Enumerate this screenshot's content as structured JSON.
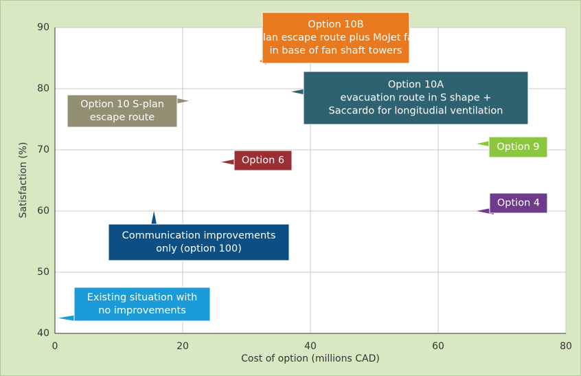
{
  "chart_data": {
    "type": "scatter",
    "xlabel": "Cost of option (millions CAD)",
    "ylabel": "Satisfaction (%)",
    "xlim": [
      0,
      80
    ],
    "ylim": [
      40,
      90
    ],
    "xticks": [
      0,
      20,
      40,
      60,
      80
    ],
    "yticks": [
      40,
      50,
      60,
      70,
      80,
      90
    ],
    "grid": true,
    "points": [
      {
        "label": [
          "Existing situation with",
          "no improvements"
        ],
        "x": 0.5,
        "y": 42.5,
        "color": "#1b9bd7"
      },
      {
        "label": [
          "Communication improvements",
          "only (option 100)"
        ],
        "x": 15.5,
        "y": 60,
        "color": "#0c4f84"
      },
      {
        "label": [
          "Option 10 S-plan",
          "escape route"
        ],
        "x": 21,
        "y": 78,
        "color": "#938f72"
      },
      {
        "label": [
          "Option 6"
        ],
        "x": 26,
        "y": 68,
        "color": "#9c2f36"
      },
      {
        "label": [
          "Option 10B",
          "S-plan escape route plus MoJet fans",
          "in base of fan shaft towers"
        ],
        "x": 32,
        "y": 84.5,
        "color": "#e8791f"
      },
      {
        "label": [
          "Option 10A",
          "evacuation route in S shape +",
          "Saccardo for longitudial ventilation"
        ],
        "x": 37,
        "y": 79.5,
        "color": "#2f6271"
      },
      {
        "label": [
          "Option 9"
        ],
        "x": 66,
        "y": 71,
        "color": "#8cc63f"
      },
      {
        "label": [
          "Option 4"
        ],
        "x": 66,
        "y": 60,
        "color": "#6e3b8b"
      }
    ]
  }
}
